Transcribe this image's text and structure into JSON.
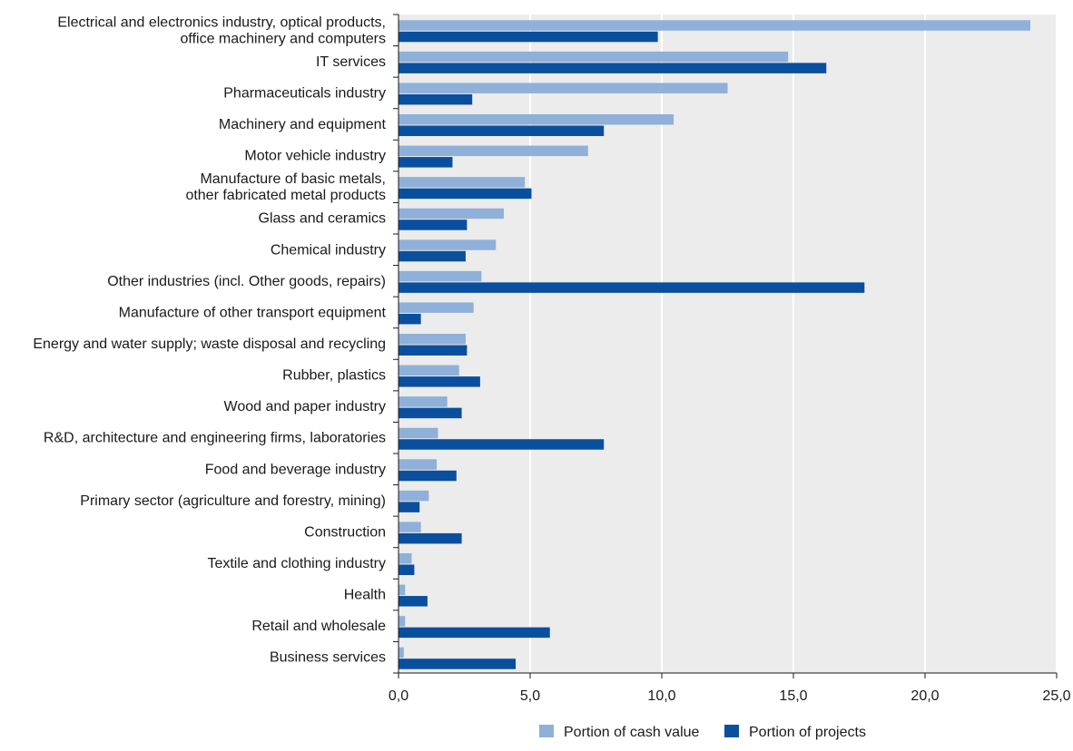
{
  "chart_data": {
    "type": "bar",
    "orientation": "horizontal",
    "categories": [
      [
        "Electrical and electronics industry, optical products,",
        "office machinery and computers"
      ],
      [
        "IT services"
      ],
      [
        "Pharmaceuticals industry"
      ],
      [
        "Machinery and equipment"
      ],
      [
        "Motor vehicle industry"
      ],
      [
        "Manufacture of basic metals,",
        "other fabricated metal products"
      ],
      [
        "Glass and ceramics"
      ],
      [
        "Chemical industry"
      ],
      [
        "Other industries (incl. Other goods, repairs)"
      ],
      [
        "Manufacture of other transport equipment"
      ],
      [
        "Energy and water supply; waste disposal and recycling"
      ],
      [
        "Rubber, plastics"
      ],
      [
        "Wood and paper industry"
      ],
      [
        "R&D, architecture and engineering firms, laboratories"
      ],
      [
        "Food and beverage industry"
      ],
      [
        "Primary sector (agriculture and forestry, mining)"
      ],
      [
        "Construction"
      ],
      [
        "Textile and clothing industry"
      ],
      [
        "Health"
      ],
      [
        "Retail and wholesale"
      ],
      [
        "Business services"
      ]
    ],
    "series": [
      {
        "name": "Portion of cash value",
        "color": "#8fb0d9",
        "values": [
          24.0,
          14.8,
          12.5,
          10.45,
          7.2,
          4.8,
          4.0,
          3.7,
          3.15,
          2.85,
          2.55,
          2.3,
          1.85,
          1.5,
          1.45,
          1.15,
          0.85,
          0.5,
          0.25,
          0.25,
          0.2
        ]
      },
      {
        "name": "Portion of projects",
        "color": "#0a4f9e",
        "values": [
          9.85,
          16.25,
          2.8,
          7.8,
          2.05,
          5.05,
          2.6,
          2.55,
          17.7,
          0.85,
          2.6,
          3.1,
          2.4,
          7.8,
          2.2,
          0.8,
          2.4,
          0.6,
          1.1,
          5.75,
          4.45
        ]
      }
    ],
    "xlim": [
      0,
      25
    ],
    "xticks": [
      0,
      5,
      10,
      15,
      20,
      25
    ],
    "xtick_labels": [
      "0,0",
      "5,0",
      "10,0",
      "15,0",
      "20,0",
      "25,0"
    ],
    "grid": "vertical",
    "legend": "bottom-center",
    "plot_background": "#ececec"
  }
}
